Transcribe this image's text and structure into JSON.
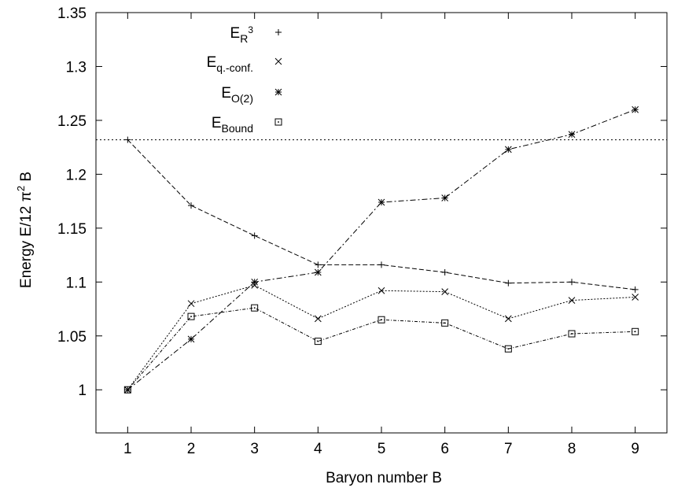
{
  "chart_data": {
    "type": "line",
    "xlabel": "Baryon number B",
    "ylabel_parts": {
      "pre": "Energy E/12 ",
      "pi": "π",
      "sup": "2",
      "post": " B"
    },
    "xlim": [
      0.5,
      9.5
    ],
    "ylim": [
      0.96,
      1.35
    ],
    "x_ticks": [
      1,
      2,
      3,
      4,
      5,
      6,
      7,
      8,
      9
    ],
    "y_ticks": [
      "1",
      "1.05",
      "1.1",
      "1.15",
      "1.2",
      "1.25",
      "1.3",
      "1.35"
    ],
    "y_tick_values": [
      1.0,
      1.05,
      1.1,
      1.15,
      1.2,
      1.25,
      1.3,
      1.35
    ],
    "legend_position": "top-left",
    "reference_line": {
      "y": 1.232,
      "style": "dotted"
    },
    "x": [
      1,
      2,
      3,
      4,
      5,
      6,
      7,
      8,
      9
    ],
    "series": [
      {
        "label_main": "E",
        "label_sub": "R",
        "label_sup": "3",
        "marker": "plus",
        "dash": "6,3",
        "values": [
          1.232,
          1.171,
          1.143,
          1.116,
          1.116,
          1.109,
          1.099,
          1.1,
          1.093
        ]
      },
      {
        "label_main": "E",
        "label_sub": "q.-conf.",
        "label_sup": "",
        "marker": "cross",
        "dash": "2,2",
        "values": [
          1.0,
          1.08,
          1.097,
          1.066,
          1.092,
          1.091,
          1.066,
          1.083,
          1.086
        ]
      },
      {
        "label_main": "E",
        "label_sub": "O(2)",
        "label_sup": "",
        "marker": "star",
        "dash": "7,3,2,3",
        "values": [
          1.0,
          1.047,
          1.1,
          1.109,
          1.174,
          1.178,
          1.223,
          1.237,
          1.26
        ]
      },
      {
        "label_main": "E",
        "label_sub": "Bound",
        "label_sup": "",
        "marker": "square",
        "dash": "4,2,1,2",
        "values": [
          1.0,
          1.068,
          1.076,
          1.045,
          1.065,
          1.062,
          1.038,
          1.052,
          1.054
        ]
      }
    ]
  }
}
